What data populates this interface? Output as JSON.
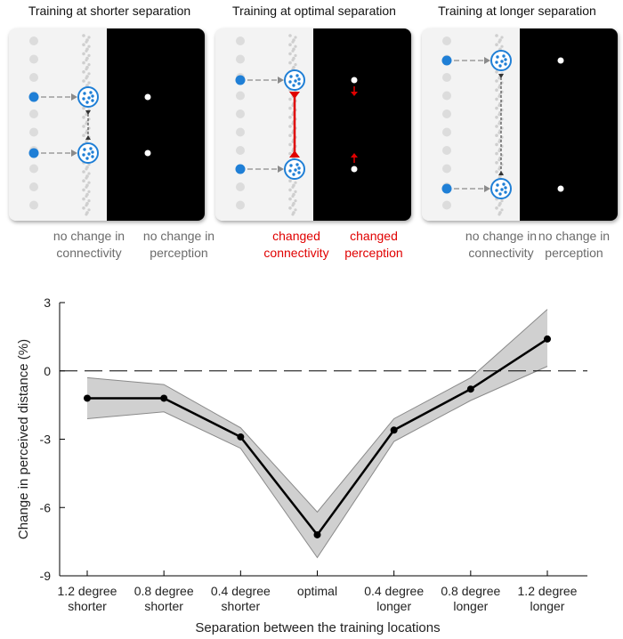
{
  "panels": [
    {
      "title": "Training at shorter separation",
      "connectivity_caption": [
        "no change in",
        "connectivity"
      ],
      "perception_caption": [
        "no change in",
        "perception"
      ],
      "caption_color": "#6b6b6b"
    },
    {
      "title": "Training at optimal separation",
      "connectivity_caption": [
        "changed",
        "connectivity"
      ],
      "perception_caption": [
        "changed",
        "perception"
      ],
      "caption_color": "#e00000"
    },
    {
      "title": "Training at longer separation",
      "connectivity_caption": [
        "no change in",
        "connectivity"
      ],
      "perception_caption": [
        "no change in",
        "perception"
      ],
      "caption_color": "#6b6b6b"
    }
  ],
  "colors": {
    "neuron_blue": "#1f7fd6",
    "connection_red": "#e00000",
    "band_fill": "#d0d0d0",
    "band_edge": "#8a8a8a",
    "line": "#000000",
    "screen": "#000000"
  },
  "chart_data": {
    "type": "line",
    "categories": [
      [
        "1.2 degree",
        "shorter"
      ],
      [
        "0.8 degree",
        "shorter"
      ],
      [
        "0.4 degree",
        "shorter"
      ],
      [
        "optimal"
      ],
      [
        "0.4 degree",
        "longer"
      ],
      [
        "0.8 degree",
        "longer"
      ],
      [
        "1.2 degree",
        "longer"
      ]
    ],
    "series": [
      {
        "values": [
          -1.2,
          -1.2,
          -2.9,
          -7.2,
          -2.6,
          -0.8,
          1.4
        ],
        "upper": [
          -0.3,
          -0.6,
          -2.5,
          -6.2,
          -2.1,
          -0.3,
          2.7
        ],
        "lower": [
          -2.1,
          -1.8,
          -3.4,
          -8.2,
          -3.1,
          -1.3,
          0.2
        ]
      }
    ],
    "xlabel": "Separation between the training locations",
    "ylabel": "Change in perceived distance (%)",
    "ylim": [
      -9,
      3
    ],
    "yticks": [
      3,
      0,
      -3,
      -6,
      -9
    ],
    "reference_line": 0,
    "grid": false
  }
}
